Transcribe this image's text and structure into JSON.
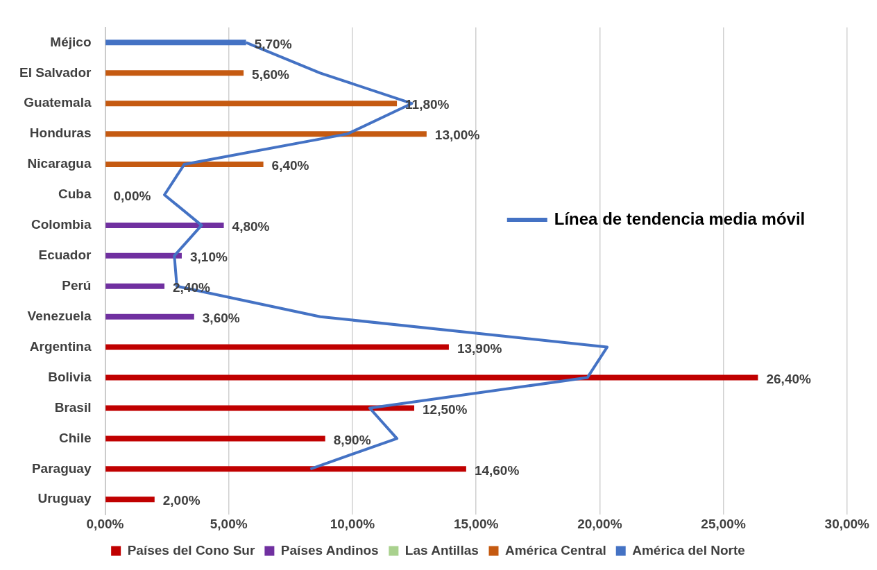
{
  "chart_data": {
    "type": "bar",
    "orientation": "horizontal",
    "categories": [
      "Méjico",
      "El Salvador",
      "Guatemala",
      "Honduras",
      "Nicaragua",
      "Cuba",
      "Colombia",
      "Ecuador",
      "Perú",
      "Venezuela",
      "Argentina",
      "Bolivia",
      "Brasil",
      "Chile",
      "Paraguay",
      "Uruguay"
    ],
    "series": [
      {
        "name": "Países del Cono Sur",
        "color": "#c00000",
        "values": [
          null,
          null,
          null,
          null,
          null,
          null,
          null,
          null,
          null,
          null,
          13.9,
          26.4,
          12.5,
          8.9,
          14.6,
          2.0
        ],
        "value_labels": [
          null,
          null,
          null,
          null,
          null,
          null,
          null,
          null,
          null,
          null,
          "13,90%",
          "26,40%",
          "12,50%",
          "8,90%",
          "14,60%",
          "2,00%"
        ]
      },
      {
        "name": "Países Andinos",
        "color": "#7030a0",
        "values": [
          null,
          null,
          null,
          null,
          null,
          null,
          4.8,
          3.1,
          2.4,
          3.6,
          null,
          null,
          null,
          null,
          null,
          null
        ],
        "value_labels": [
          null,
          null,
          null,
          null,
          null,
          null,
          "4,80%",
          "3,10%",
          "2,40%",
          "3,60%",
          null,
          null,
          null,
          null,
          null,
          null
        ]
      },
      {
        "name": "Las Antillas",
        "color": "#a9d18e",
        "values": [
          null,
          null,
          null,
          null,
          null,
          0.0,
          null,
          null,
          null,
          null,
          null,
          null,
          null,
          null,
          null,
          null
        ],
        "value_labels": [
          null,
          null,
          null,
          null,
          null,
          "0,00%",
          null,
          null,
          null,
          null,
          null,
          null,
          null,
          null,
          null,
          null
        ]
      },
      {
        "name": "América Central",
        "color": "#c55a11",
        "values": [
          null,
          5.6,
          11.8,
          13.0,
          6.4,
          null,
          null,
          null,
          null,
          null,
          null,
          null,
          null,
          null,
          null,
          null
        ],
        "value_labels": [
          null,
          "5,60%",
          "11,80%",
          "13,00%",
          "6,40%",
          null,
          null,
          null,
          null,
          null,
          null,
          null,
          null,
          null,
          null,
          null
        ]
      },
      {
        "name": "América del Norte",
        "color": "#4472c4",
        "values": [
          5.7,
          null,
          null,
          null,
          null,
          null,
          null,
          null,
          null,
          null,
          null,
          null,
          null,
          null,
          null,
          null
        ],
        "value_labels": [
          "5,70%",
          null,
          null,
          null,
          null,
          null,
          null,
          null,
          null,
          null,
          null,
          null,
          null,
          null,
          null,
          null
        ]
      },
      {
        "name": "Línea de tendencia media móvil",
        "type": "line",
        "color": "#4472c4",
        "values": [
          5.7,
          8.7,
          12.4,
          9.8,
          3.2,
          2.4,
          3.9,
          2.8,
          2.9,
          8.7,
          20.3,
          19.5,
          10.7,
          11.8,
          8.3,
          null
        ]
      }
    ],
    "xlim": [
      0,
      30
    ],
    "xticks": [
      {
        "value": 0,
        "label": "0,00%"
      },
      {
        "value": 5,
        "label": "5,00%"
      },
      {
        "value": 10,
        "label": "10,00%"
      },
      {
        "value": 15,
        "label": "15,00%"
      },
      {
        "value": 20,
        "label": "20,00%"
      },
      {
        "value": 25,
        "label": "25,00%"
      },
      {
        "value": 30,
        "label": "30,00%"
      }
    ],
    "grid": "x",
    "legend": "bottom",
    "marker": "none",
    "line_style": "solid"
  }
}
